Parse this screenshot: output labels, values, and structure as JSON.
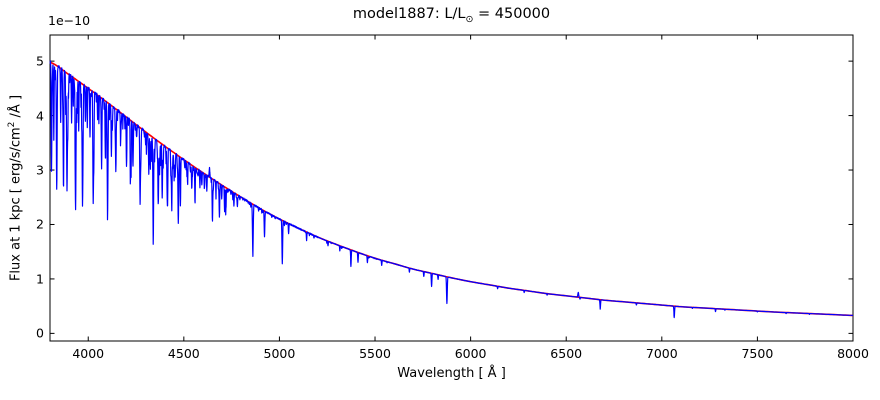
{
  "figure": {
    "title": {
      "prefix": "model1887: L/L",
      "sun_symbol": "⊙",
      "suffix": " = 450000"
    },
    "offset_text": "1e−10",
    "xlabel": "Wavelength [ Å ]",
    "ylabel": {
      "prefix": "Flux at 1 kpc [ erg/s/cm",
      "sup": "2",
      "suffix": " /Å ]"
    }
  },
  "chart_data": {
    "type": "line",
    "title": "model1887: L/L⊙ = 450000",
    "xlabel": "Wavelength [ Å ]",
    "ylabel": "Flux at 1 kpc [ erg/s/cm² /Å ]",
    "y_scale_offset_text": "1e−10",
    "xlim": [
      3800,
      8000
    ],
    "ylim": [
      -0.14,
      5.48
    ],
    "xticks": [
      4000,
      4500,
      5000,
      5500,
      6000,
      6500,
      7000,
      7500,
      8000
    ],
    "yticks": [
      0,
      1,
      2,
      3,
      4,
      5
    ],
    "grid": false,
    "legend": false,
    "frame_color": "#000000",
    "series": [
      {
        "name": "continuum fit",
        "role": "continuum",
        "color": "#ff0000",
        "linewidth": 1.6
      },
      {
        "name": "model spectrum",
        "role": "spectrum",
        "color": "#0000ff",
        "linewidth": 1.2
      }
    ],
    "continuum_anchors": [
      [
        3800,
        4.98
      ],
      [
        3900,
        4.75
      ],
      [
        4000,
        4.5
      ],
      [
        4100,
        4.24
      ],
      [
        4200,
        3.97
      ],
      [
        4300,
        3.7
      ],
      [
        4400,
        3.44
      ],
      [
        4500,
        3.19
      ],
      [
        4600,
        2.95
      ],
      [
        4700,
        2.72
      ],
      [
        4800,
        2.5
      ],
      [
        4900,
        2.29
      ],
      [
        5000,
        2.1
      ],
      [
        5100,
        1.93
      ],
      [
        5200,
        1.77
      ],
      [
        5300,
        1.63
      ],
      [
        5400,
        1.5
      ],
      [
        5500,
        1.38
      ],
      [
        5600,
        1.28
      ],
      [
        5700,
        1.18
      ],
      [
        5800,
        1.1
      ],
      [
        5900,
        1.02
      ],
      [
        6000,
        0.95
      ],
      [
        6100,
        0.89
      ],
      [
        6200,
        0.83
      ],
      [
        6300,
        0.78
      ],
      [
        6400,
        0.73
      ],
      [
        6500,
        0.69
      ],
      [
        6600,
        0.65
      ],
      [
        6700,
        0.61
      ],
      [
        6800,
        0.58
      ],
      [
        6900,
        0.55
      ],
      [
        7000,
        0.52
      ],
      [
        7100,
        0.49
      ],
      [
        7200,
        0.47
      ],
      [
        7300,
        0.45
      ],
      [
        7400,
        0.43
      ],
      [
        7500,
        0.41
      ],
      [
        7600,
        0.39
      ],
      [
        7700,
        0.375
      ],
      [
        7800,
        0.36
      ],
      [
        7900,
        0.345
      ],
      [
        8000,
        0.33
      ]
    ],
    "absorption_lines": [
      [
        3808,
        0.4,
        1.6
      ],
      [
        3820,
        0.28,
        1.4
      ],
      [
        3835,
        0.44,
        1.8
      ],
      [
        3856,
        0.2,
        1.3
      ],
      [
        3871,
        0.3,
        1.4
      ],
      [
        3889,
        0.45,
        1.8
      ],
      [
        3913,
        0.18,
        1.3
      ],
      [
        3934,
        0.44,
        1.7
      ],
      [
        3950,
        0.2,
        1.3
      ],
      [
        3970,
        0.48,
        1.9
      ],
      [
        3995,
        0.16,
        1.3
      ],
      [
        4009,
        0.2,
        1.4
      ],
      [
        4026,
        0.46,
        1.8
      ],
      [
        4070,
        0.3,
        1.6
      ],
      [
        4089,
        0.22,
        1.4
      ],
      [
        4101,
        0.5,
        2.0
      ],
      [
        4121,
        0.22,
        1.4
      ],
      [
        4144,
        0.26,
        1.5
      ],
      [
        4169,
        0.14,
        1.3
      ],
      [
        4200,
        0.18,
        1.4
      ],
      [
        4233,
        0.15,
        1.3
      ],
      [
        4271,
        0.34,
        1.6
      ],
      [
        4317,
        0.2,
        1.4
      ],
      [
        4340,
        0.55,
        2.0
      ],
      [
        4367,
        0.18,
        1.3
      ],
      [
        4387,
        0.28,
        1.6
      ],
      [
        4415,
        0.2,
        1.4
      ],
      [
        4437,
        0.14,
        1.3
      ],
      [
        4471,
        0.38,
        1.8
      ],
      [
        4482,
        0.28,
        1.5
      ],
      [
        4520,
        0.12,
        1.3
      ],
      [
        4541,
        0.12,
        1.3
      ],
      [
        4584,
        0.1,
        1.3
      ],
      [
        4620,
        0.1,
        1.3
      ],
      [
        4634,
        -0.06,
        1.8
      ],
      [
        4649,
        0.16,
        1.4
      ],
      [
        4686,
        0.2,
        1.5
      ],
      [
        4713,
        0.13,
        1.3
      ],
      [
        4780,
        0.08,
        1.3
      ],
      [
        4861,
        0.4,
        2.0
      ],
      [
        4922,
        0.21,
        1.6
      ],
      [
        5015,
        0.38,
        1.7
      ],
      [
        5048,
        0.09,
        1.3
      ],
      [
        5142,
        0.07,
        1.3
      ],
      [
        5254,
        0.05,
        1.3
      ],
      [
        5316,
        0.06,
        1.3
      ],
      [
        5374,
        0.2,
        1.5
      ],
      [
        5411,
        0.12,
        1.4
      ],
      [
        5460,
        0.09,
        1.3
      ],
      [
        5535,
        0.07,
        1.3
      ],
      [
        5680,
        0.06,
        1.3
      ],
      [
        5755,
        0.08,
        1.3
      ],
      [
        5796,
        0.22,
        1.5
      ],
      [
        5830,
        0.08,
        1.3
      ],
      [
        5876,
        0.47,
        1.8
      ],
      [
        6141,
        0.05,
        1.3
      ],
      [
        6280,
        0.05,
        1.3
      ],
      [
        6400,
        0.04,
        1.3
      ],
      [
        6563,
        -0.13,
        2.2
      ],
      [
        6572,
        0.05,
        1.3
      ],
      [
        6678,
        0.28,
        1.6
      ],
      [
        6867,
        0.07,
        1.4
      ],
      [
        7065,
        0.42,
        1.7
      ],
      [
        7160,
        0.04,
        1.3
      ],
      [
        7281,
        0.12,
        1.4
      ],
      [
        7330,
        0.04,
        1.3
      ],
      [
        7500,
        0.04,
        1.3
      ],
      [
        7650,
        0.05,
        1.4
      ],
      [
        7772,
        0.04,
        1.3
      ]
    ],
    "line_forest": [
      {
        "range": [
          3805,
          4800
        ],
        "count": 150,
        "depth_min": 0.03,
        "depth_max": 0.22,
        "sigma_min": 0.7,
        "sigma_max": 1.8,
        "depth_taper": 0.45,
        "seed": 11
      },
      {
        "range": [
          4805,
          5650
        ],
        "count": 28,
        "depth_min": 0.01,
        "depth_max": 0.05,
        "sigma_min": 0.7,
        "sigma_max": 1.4,
        "depth_taper": 0.0,
        "seed": 22
      }
    ],
    "noise": {
      "rel_amplitude_blue": 0.006,
      "rel_amplitude_red": 0.0025,
      "transition": 5200,
      "seed": 7
    }
  }
}
